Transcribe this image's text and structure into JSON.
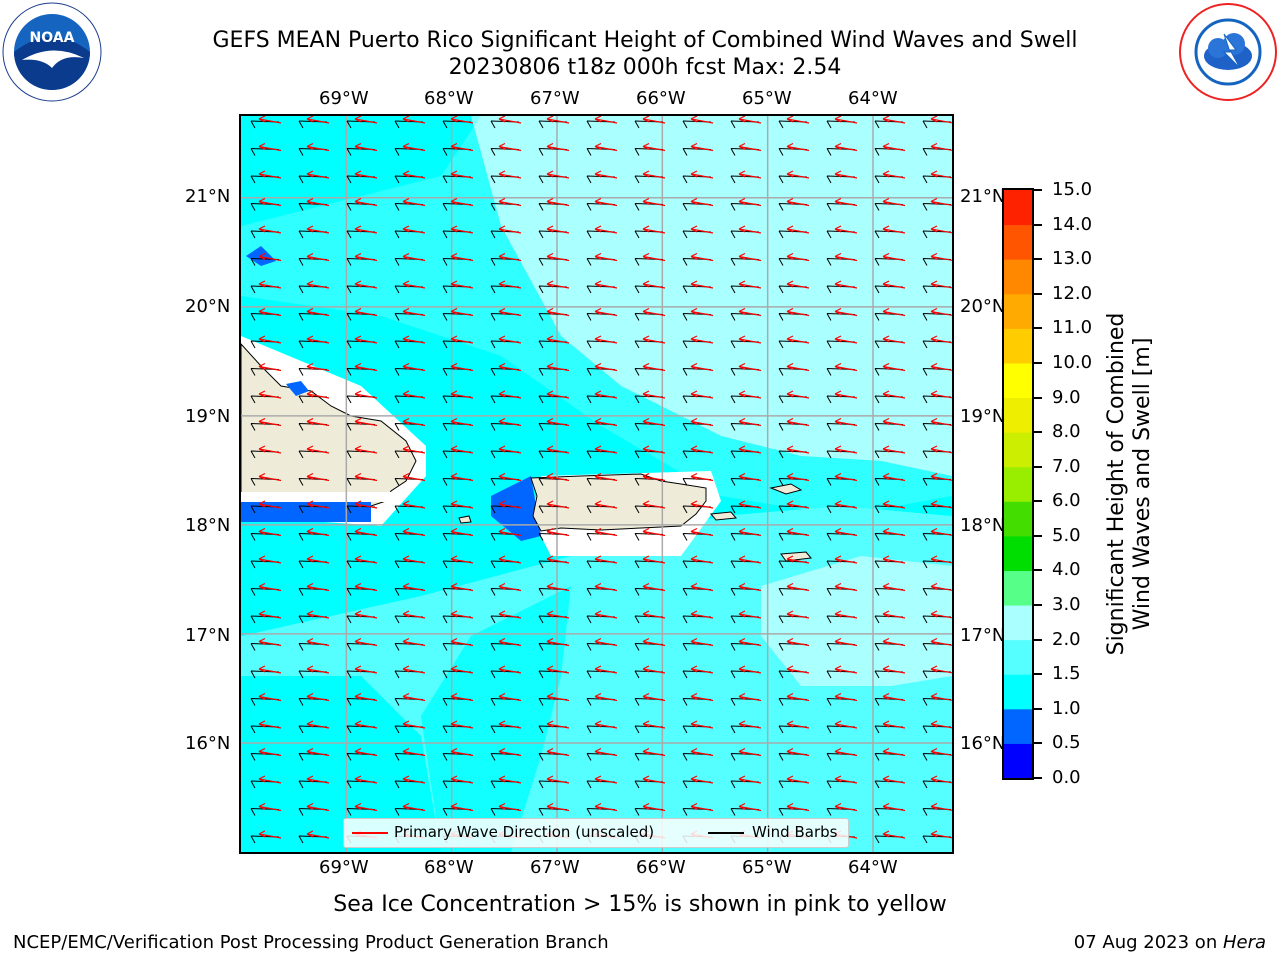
{
  "header": {
    "title_line1": "GEFS MEAN Puerto Rico Significant Height of Combined Wind Waves and Swell",
    "title_line2": "20230806 t18z 000h fcst   Max: 2.54"
  },
  "logos": {
    "left": "noaa-logo",
    "left_text": "NOAA",
    "right": "nws-logo"
  },
  "map": {
    "lon_labels": [
      "69°W",
      "68°W",
      "67°W",
      "66°W",
      "65°W",
      "64°W"
    ],
    "lat_labels": [
      "21°N",
      "20°N",
      "19°N",
      "18°N",
      "17°N",
      "16°N"
    ],
    "lat_labels_right": [
      "21°N",
      "20°N",
      "19°N",
      "18°N",
      "17°N",
      "16°N"
    ],
    "lon_range": [
      -70.0,
      -63.25
    ],
    "lat_range": [
      15.0,
      21.75
    ],
    "ocean_color": "#00ffff",
    "light_color": "#aaffff",
    "mid_color": "#55ffff",
    "land_color": "#eeecd9",
    "wave_arrow_color": "#ff0000",
    "barb_color": "#000000",
    "grid_color": "#aaaaaa"
  },
  "legend": {
    "primary_wave": "Primary Wave Direction (unscaled)",
    "wind_barbs": "Wind Barbs"
  },
  "colorbar": {
    "label_line1": "Significant Height of Combined",
    "label_line2": "Wind Waves and Swell [m]",
    "ticks": [
      "0.0",
      "0.5",
      "1.0",
      "1.5",
      "2.0",
      "3.0",
      "4.0",
      "5.0",
      "6.0",
      "7.0",
      "8.0",
      "9.0",
      "10.0",
      "11.0",
      "12.0",
      "13.0",
      "14.0",
      "15.0"
    ],
    "colors": [
      "#0000ff",
      "#0066ff",
      "#00ffff",
      "#55ffff",
      "#aaffff",
      "#55ff88",
      "#00dd00",
      "#44dd00",
      "#99ee00",
      "#ccee00",
      "#eeee00",
      "#ffff00",
      "#ffcc00",
      "#ffaa00",
      "#ff8800",
      "#ff5500",
      "#ff2200",
      "#ff0000"
    ]
  },
  "footer": {
    "note": "Sea Ice Concentration > 15% is shown in pink to yellow",
    "left": "NCEP/EMC/Verification Post Processing Product Generation Branch",
    "right_prefix": "07 Aug 2023 on ",
    "right_host": "Hera"
  }
}
